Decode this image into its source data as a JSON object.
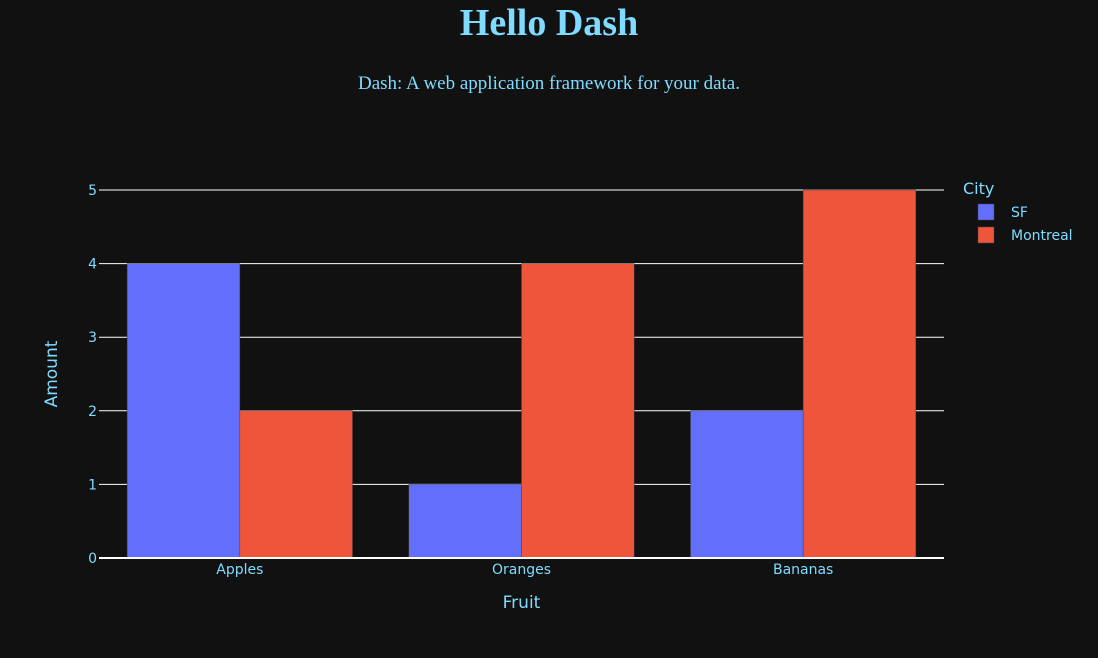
{
  "header": {
    "title": "Hello Dash",
    "subtitle": "Dash: A web application framework for your data."
  },
  "colors": {
    "background": "#111111",
    "text": "#7FDBFF",
    "grid": "#ffffff",
    "series": [
      "#636efa",
      "#EF553B"
    ]
  },
  "chart_data": {
    "type": "bar",
    "barmode": "group",
    "categories": [
      "Apples",
      "Oranges",
      "Bananas"
    ],
    "series": [
      {
        "name": "SF",
        "values": [
          4,
          1,
          2
        ]
      },
      {
        "name": "Montreal",
        "values": [
          2,
          4,
          5
        ]
      }
    ],
    "xlabel": "Fruit",
    "ylabel": "Amount",
    "ylim": [
      0,
      5
    ],
    "yticks": [
      0,
      1,
      2,
      3,
      4,
      5
    ],
    "legend_title": "City",
    "legend_position": "top-right",
    "grid": true
  }
}
